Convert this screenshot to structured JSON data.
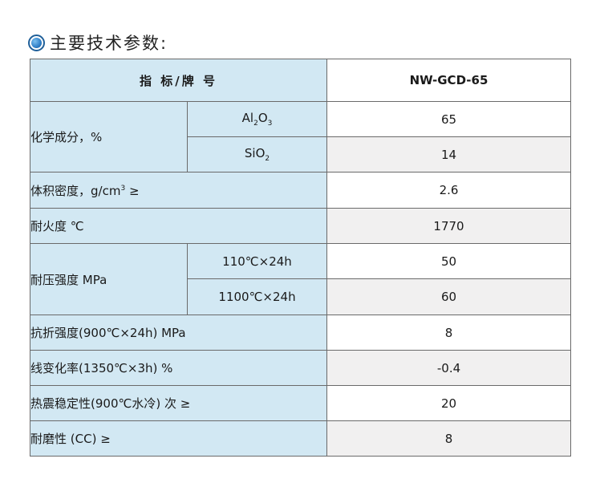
{
  "heading": "主要技术参数:",
  "table": {
    "header_left": "指 标/牌 号",
    "header_right": "NW-GCD-65",
    "chem": {
      "label": "化学成分，%",
      "al2o3": {
        "p1": "Al",
        "s1": "2",
        "p2": "O",
        "s2": "3",
        "value": "65"
      },
      "sio2": {
        "p1": "SiO",
        "s1": "2",
        "value": "14"
      }
    },
    "density": {
      "label": "体积密度，g/cm",
      "sup": "3",
      "suffix": " ≥",
      "value": "2.6"
    },
    "refractoriness": {
      "label": "耐火度 ℃",
      "value": "1770"
    },
    "ccs": {
      "label": "耐压强度 MPa",
      "r110": {
        "cond": "110℃×24h",
        "value": "50"
      },
      "r1100": {
        "cond": "1100℃×24h",
        "value": "60"
      }
    },
    "mor": {
      "label": "抗折强度(900℃×24h)  MPa",
      "value": "8"
    },
    "plc": {
      "label": "线变化率(1350℃×3h)  %",
      "value": "-0.4"
    },
    "tsr": {
      "label": "热震稳定性(900℃水冷)  次  ≥",
      "value": "20"
    },
    "abrasion": {
      "label": "耐磨性  (CC)  ≥",
      "value": "8"
    }
  }
}
